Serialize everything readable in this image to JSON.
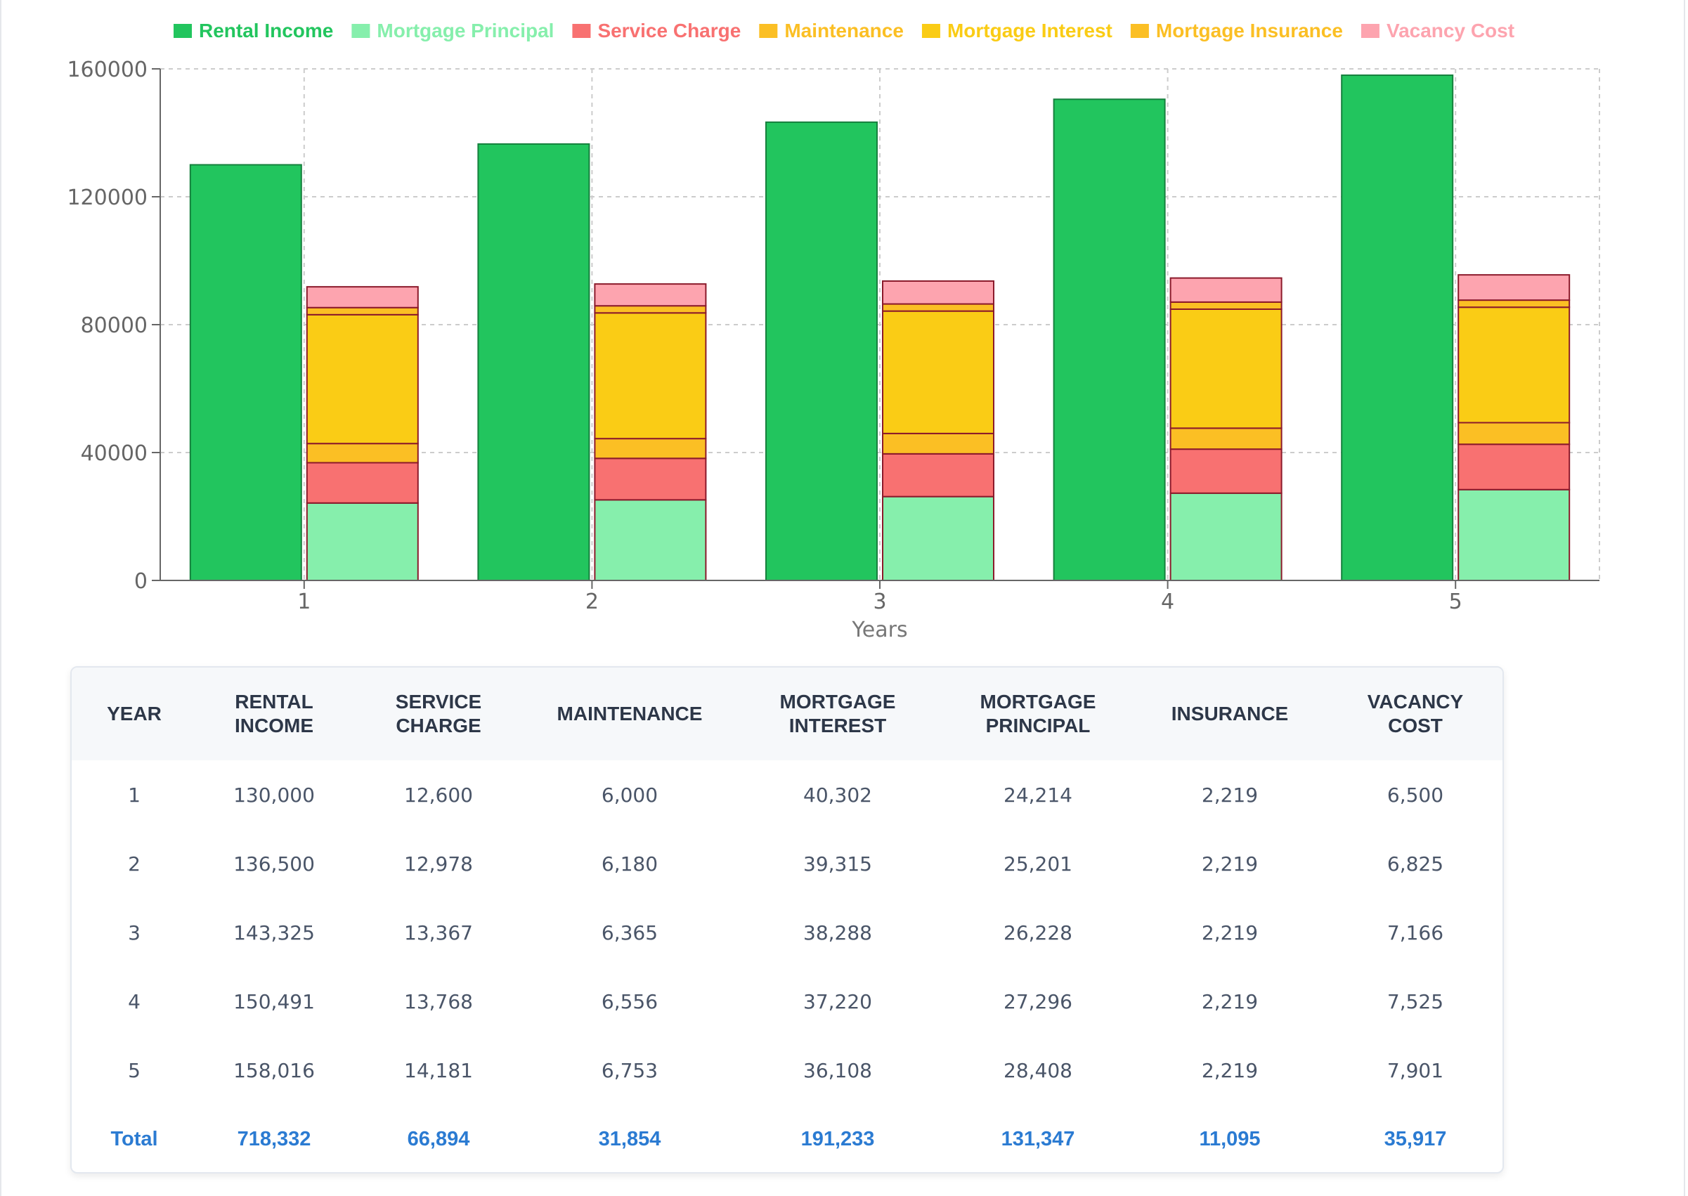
{
  "chart_data": {
    "type": "bar",
    "stacked": true,
    "title": "",
    "xlabel": "Years",
    "ylabel": "",
    "ylim": [
      0,
      160000
    ],
    "yticks": [
      0,
      40000,
      80000,
      120000,
      160000
    ],
    "categories": [
      "1",
      "2",
      "3",
      "4",
      "5"
    ],
    "legend_position": "top",
    "grid": true,
    "series": [
      {
        "name": "Rental Income",
        "stack": "income",
        "color": "#22c55e",
        "values": [
          130000,
          136500,
          143325,
          150491,
          158016
        ]
      },
      {
        "name": "Mortgage Principal",
        "stack": "costs",
        "color": "#86efac",
        "values": [
          24214,
          25201,
          26228,
          27296,
          28408
        ]
      },
      {
        "name": "Service Charge",
        "stack": "costs",
        "color": "#f87171",
        "values": [
          12600,
          12978,
          13367,
          13768,
          14181
        ]
      },
      {
        "name": "Maintenance",
        "stack": "costs",
        "color": "#fbbf24",
        "values": [
          6000,
          6180,
          6365,
          6556,
          6753
        ]
      },
      {
        "name": "Mortgage Interest",
        "stack": "costs",
        "color": "#facc15",
        "values": [
          40302,
          39315,
          38288,
          37220,
          36108
        ]
      },
      {
        "name": "Mortgage Insurance",
        "stack": "costs",
        "color": "#fbbf24",
        "values": [
          2219,
          2219,
          2219,
          2219,
          2219
        ]
      },
      {
        "name": "Vacancy Cost",
        "stack": "costs",
        "color": "#fda4af",
        "values": [
          6500,
          6825,
          7166,
          7525,
          7901
        ]
      }
    ]
  },
  "table": {
    "headers": [
      [
        "YEAR"
      ],
      [
        "RENTAL",
        "INCOME"
      ],
      [
        "SERVICE",
        "CHARGE"
      ],
      [
        "MAINTENANCE"
      ],
      [
        "MORTGAGE",
        "INTEREST"
      ],
      [
        "MORTGAGE",
        "PRINCIPAL"
      ],
      [
        "INSURANCE"
      ],
      [
        "VACANCY",
        "COST"
      ]
    ],
    "rows": [
      [
        "1",
        "130,000",
        "12,600",
        "6,000",
        "40,302",
        "24,214",
        "2,219",
        "6,500"
      ],
      [
        "2",
        "136,500",
        "12,978",
        "6,180",
        "39,315",
        "25,201",
        "2,219",
        "6,825"
      ],
      [
        "3",
        "143,325",
        "13,367",
        "6,365",
        "38,288",
        "26,228",
        "2,219",
        "7,166"
      ],
      [
        "4",
        "150,491",
        "13,768",
        "6,556",
        "37,220",
        "27,296",
        "2,219",
        "7,525"
      ],
      [
        "5",
        "158,016",
        "14,181",
        "6,753",
        "36,108",
        "28,408",
        "2,219",
        "7,901"
      ]
    ],
    "total": [
      "Total",
      "718,332",
      "66,894",
      "31,854",
      "191,233",
      "131,347",
      "11,095",
      "35,917"
    ]
  }
}
